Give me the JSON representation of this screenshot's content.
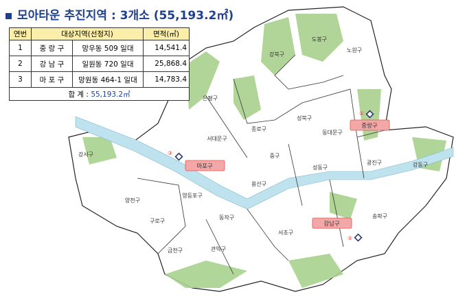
{
  "title": "모아타운 추진지역 : 3개소 (55,193.2㎡)",
  "table": {
    "headers": [
      "연번",
      "대상지역(선정지)",
      "면적(㎡)"
    ],
    "rows": [
      {
        "no": "1",
        "district": "중 랑 구",
        "site": "망우동 509 일대",
        "area": "14,541.4"
      },
      {
        "no": "2",
        "district": "강 남 구",
        "site": "일원동 720 일대",
        "area": "25,868.4"
      },
      {
        "no": "3",
        "district": "마 포 구",
        "site": "망원동 464-1 일대",
        "area": "14,783.4"
      }
    ],
    "total_label": "합  계 : ",
    "total_value": "55,193.2㎡"
  },
  "map": {
    "colors": {
      "green": "#a9d18e",
      "river": "#bfe3ee",
      "highlight": "#f4a7a7",
      "marker": "#1f2f6f",
      "number": "#e03a2a"
    },
    "districts": [
      "도봉구",
      "노원구",
      "강북구",
      "은평구",
      "성북구",
      "종로구",
      "동대문구",
      "서대문구",
      "중구",
      "성동구",
      "광진구",
      "강동구",
      "용산구",
      "강서구",
      "양천구",
      "영등포구",
      "구로구",
      "동작구",
      "서초구",
      "송파구",
      "금천구",
      "관악구"
    ],
    "highlighted": [
      {
        "name": "중랑구",
        "number": "①"
      },
      {
        "name": "강남구",
        "number": "②"
      },
      {
        "name": "마포구",
        "number": "③"
      }
    ]
  }
}
